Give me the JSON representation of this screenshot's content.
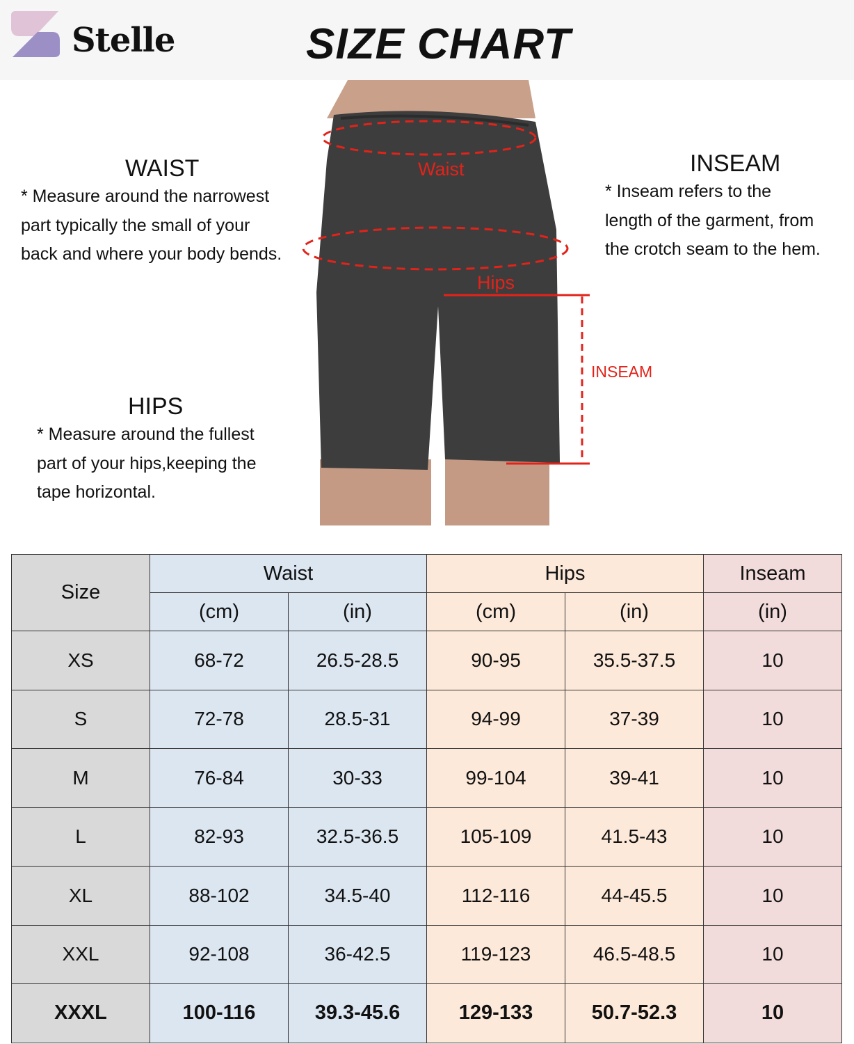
{
  "brand": {
    "name": "Stelle",
    "logo_colors": [
      "#e0c3d6",
      "#9b8fc6"
    ]
  },
  "title": "SIZE CHART",
  "diagram": {
    "waist_label": "Waist",
    "hips_label": "Hips",
    "inseam_label": "INSEAM",
    "marker_color": "#e2231a"
  },
  "waist": {
    "heading": "WAIST",
    "lines": [
      "* Measure around the narrowest",
      "part typically the small of your",
      "back and where your body bends."
    ]
  },
  "hips": {
    "heading": "HIPS",
    "lines": [
      "* Measure around the fullest",
      "part of your hips,keeping the",
      "tape horizontal."
    ]
  },
  "inseam": {
    "heading": "INSEAM",
    "lines": [
      "* Inseam refers to the",
      "length of the garment, from",
      "the crotch seam to the hem."
    ]
  },
  "table": {
    "groups": {
      "size": "Size",
      "waist": "Waist",
      "hips": "Hips",
      "inseam": "Inseam"
    },
    "units": [
      "(cm)",
      "(in)",
      "(cm)",
      "(in)",
      "(in)"
    ],
    "rows": [
      [
        "XS",
        "68-72",
        "26.5-28.5",
        "90-95",
        "35.5-37.5",
        "10"
      ],
      [
        "S",
        "72-78",
        "28.5-31",
        "94-99",
        "37-39",
        "10"
      ],
      [
        "M",
        "76-84",
        "30-33",
        "99-104",
        "39-41",
        "10"
      ],
      [
        "L",
        "82-93",
        "32.5-36.5",
        "105-109",
        "41.5-43",
        "10"
      ],
      [
        "XL",
        "88-102",
        "34.5-40",
        "112-116",
        "44-45.5",
        "10"
      ],
      [
        "XXL",
        "92-108",
        "36-42.5",
        "119-123",
        "46.5-48.5",
        "10"
      ],
      [
        "XXXL",
        "100-116",
        "39.3-45.6",
        "129-133",
        "50.7-52.3",
        "10"
      ]
    ]
  }
}
